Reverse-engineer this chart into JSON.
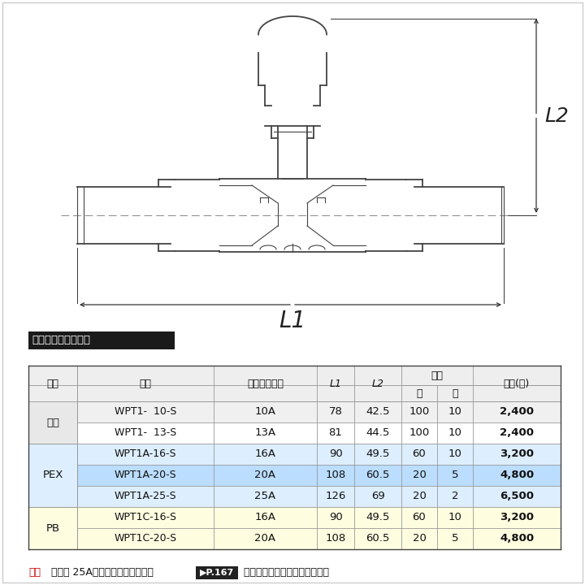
{
  "title_label": "同径チーズソケット",
  "bg_color": "#ffffff",
  "rows": [
    {
      "tekiyo": "共用",
      "hinban": "WPT1-  10-S",
      "keikei": "10A",
      "L1": "78",
      "L2": "42.5",
      "dai": "100",
      "sho": "10",
      "kakaku": "2,400",
      "bg": "#f0f0f0",
      "tekiyo_show": true
    },
    {
      "tekiyo": "共用",
      "hinban": "WPT1-  13-S",
      "keikei": "13A",
      "L1": "81",
      "L2": "44.5",
      "dai": "100",
      "sho": "10",
      "kakaku": "2,400",
      "bg": "#ffffff",
      "tekiyo_show": false
    },
    {
      "tekiyo": "PEX",
      "hinban": "WPT1A-16-S",
      "keikei": "16A",
      "L1": "90",
      "L2": "49.5",
      "dai": "60",
      "sho": "10",
      "kakaku": "3,200",
      "bg": "#ddeeff",
      "tekiyo_show": true
    },
    {
      "tekiyo": "PEX",
      "hinban": "WPT1A-20-S",
      "keikei": "20A",
      "L1": "108",
      "L2": "60.5",
      "dai": "20",
      "sho": "5",
      "kakaku": "4,800",
      "bg": "#bbddff",
      "tekiyo_show": false
    },
    {
      "tekiyo": "PEX",
      "hinban": "WPT1A-25-S",
      "keikei": "25A",
      "L1": "126",
      "L2": "69",
      "dai": "20",
      "sho": "2",
      "kakaku": "6,500",
      "bg": "#ddeeff",
      "tekiyo_show": false
    },
    {
      "tekiyo": "PB",
      "hinban": "WPT1C-16-S",
      "keikei": "16A",
      "L1": "90",
      "L2": "49.5",
      "dai": "60",
      "sho": "10",
      "kakaku": "3,200",
      "bg": "#fffde0",
      "tekiyo_show": true
    },
    {
      "tekiyo": "PB",
      "hinban": "WPT1C-20-S",
      "keikei": "20A",
      "L1": "108",
      "L2": "60.5",
      "dai": "20",
      "sho": "5",
      "kakaku": "4,800",
      "bg": "#fffde0",
      "tekiyo_show": false
    }
  ],
  "header_tekiyo": "適用",
  "header_hinban": "品番",
  "header_keikei": "樹脂管呼び径",
  "header_nyusu": "入数",
  "header_dai": "大",
  "header_sho": "小",
  "header_kakaku": "価格(円)",
  "note_red": "注：",
  "note_black": "呼び径 25A使用時は、面取り工具",
  "note_end": " で樹脂管を面取りして下さい。",
  "p167_text": "▶P.167",
  "L1_label": "L1",
  "L2_label": "L2",
  "line_color": "#444444",
  "dim_color": "#333333",
  "grid_color": "#999999"
}
